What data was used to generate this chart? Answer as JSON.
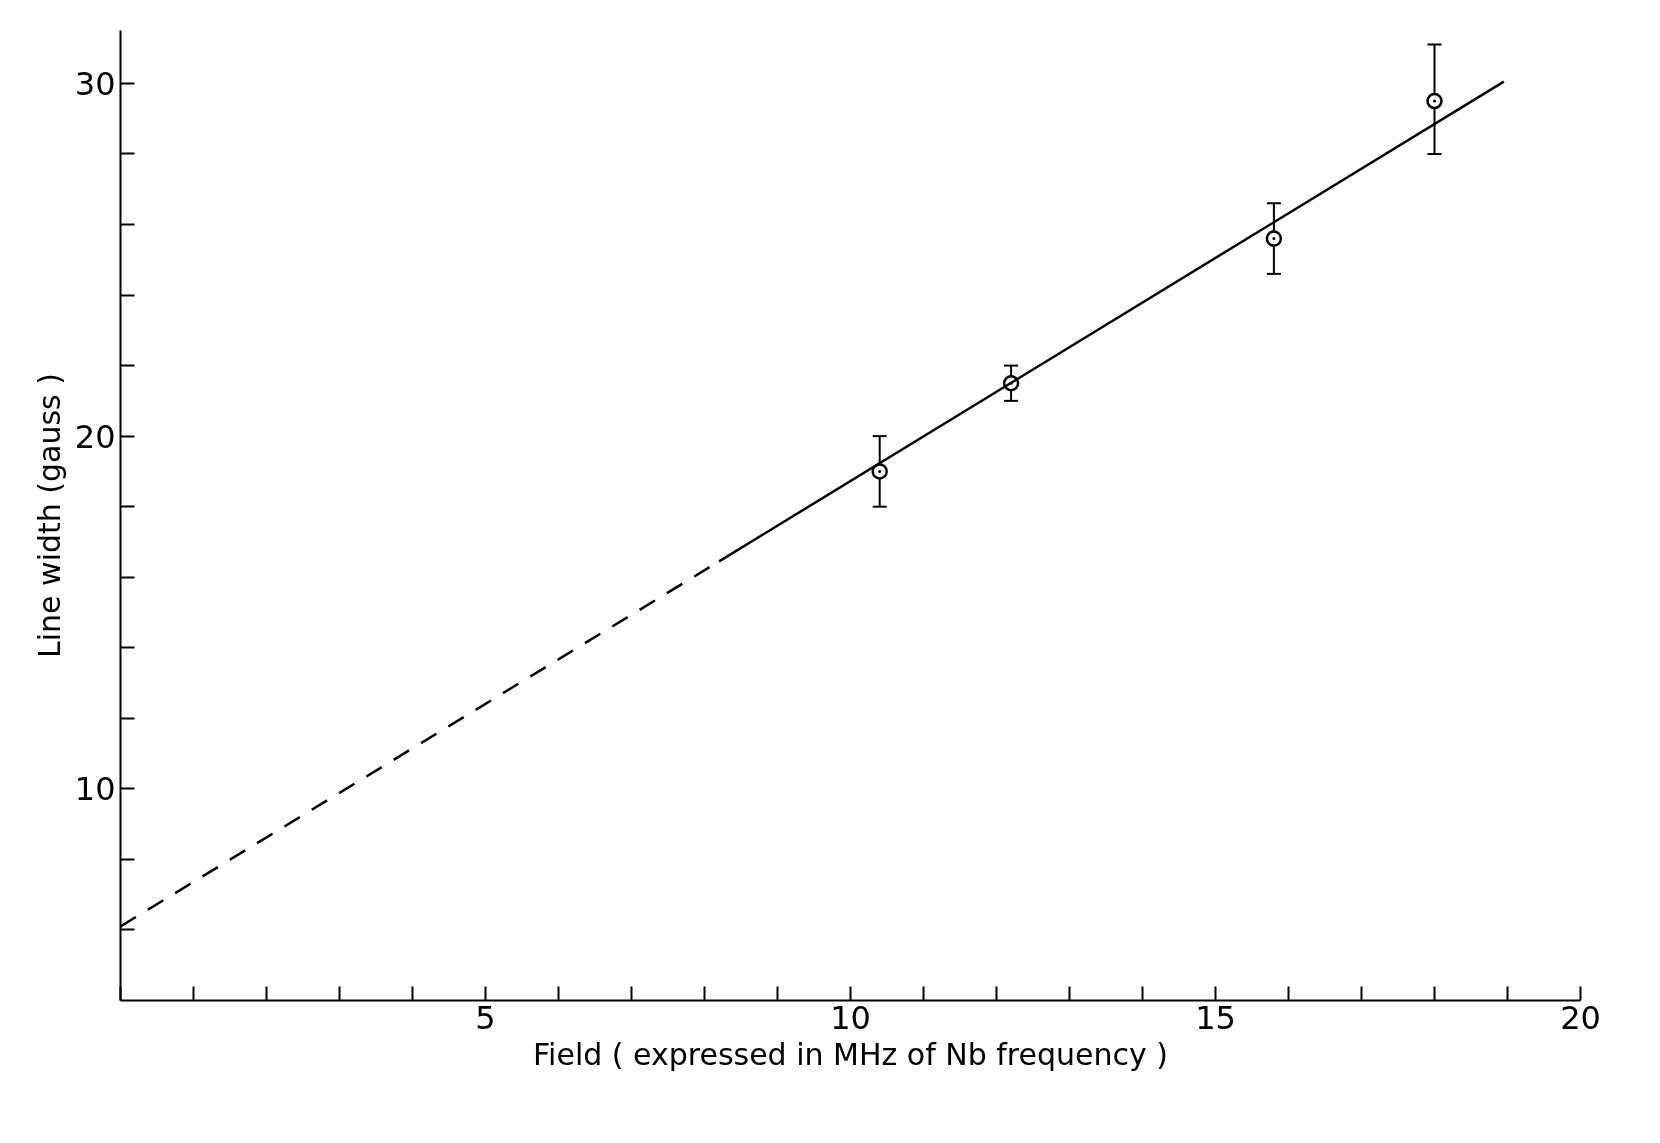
{
  "chart_data": {
    "type": "scatter",
    "xlabel": "Field ( expressed in MHz of Nb frequency )",
    "ylabel": "Line width (gauss )",
    "xlim": [
      0,
      20
    ],
    "ylim": [
      4,
      31.5
    ],
    "xticks": [
      {
        "value": 0,
        "label": null
      },
      {
        "value": 1,
        "label": null
      },
      {
        "value": 2,
        "label": null
      },
      {
        "value": 3,
        "label": null
      },
      {
        "value": 4,
        "label": null
      },
      5,
      {
        "value": 6,
        "label": null
      },
      {
        "value": 7,
        "label": null
      },
      {
        "value": 8,
        "label": null
      },
      {
        "value": 9,
        "label": null
      },
      10,
      {
        "value": 11,
        "label": null
      },
      {
        "value": 12,
        "label": null
      },
      {
        "value": 13,
        "label": null
      },
      {
        "value": 14,
        "label": null
      },
      15,
      {
        "value": 16,
        "label": null
      },
      {
        "value": 17,
        "label": null
      },
      {
        "value": 18,
        "label": null
      },
      {
        "value": 19,
        "label": null
      },
      20
    ],
    "yticks": [
      {
        "value": 6,
        "label": null
      },
      {
        "value": 8,
        "label": null
      },
      10,
      {
        "value": 12,
        "label": null
      },
      {
        "value": 14,
        "label": null
      },
      {
        "value": 16,
        "label": null
      },
      {
        "value": 18,
        "label": null
      },
      20,
      {
        "value": 22,
        "label": null
      },
      {
        "value": 24,
        "label": null
      },
      {
        "value": 26,
        "label": null
      },
      {
        "value": 28,
        "label": null
      },
      30
    ],
    "grid": false,
    "series": [
      {
        "color": "#000000",
        "marker": "circle",
        "x": [
          10.4,
          12.2,
          15.8,
          18.0
        ],
        "values": [
          19.0,
          21.5,
          25.6,
          29.5
        ],
        "errors": [
          1.0,
          0.5,
          1.0,
          [
            28.0,
            31.1
          ]
        ]
      },
      {
        "type": "line",
        "color": "#000000",
        "line_style": "solid",
        "marker": "none",
        "x": [
          8.2,
          18.95
        ],
        "values": [
          16.45,
          30.05
        ]
      },
      {
        "type": "line",
        "color": "#000000",
        "line_style": "dashed",
        "marker": "none",
        "x": [
          0,
          8.2
        ],
        "values": [
          6.1,
          16.45
        ]
      }
    ]
  }
}
